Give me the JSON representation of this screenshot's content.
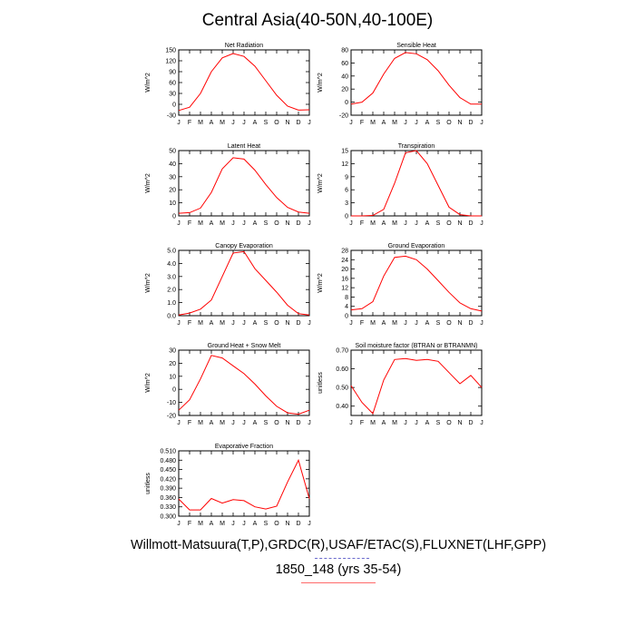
{
  "title": "Central Asia(40-50N,40-100E)",
  "caption_line1": "Willmott-Matsuura(T,P),GRDC(R),USAF/ETAC(S),FLUXNET(LHF,GPP)",
  "caption_line2": "1850_148 (yrs 35-54)",
  "line_color": "#ff0000",
  "chart_data": [
    {
      "type": "line",
      "title": "Net Radiation",
      "ylabel": "W/m^2",
      "categories": [
        "J",
        "F",
        "M",
        "A",
        "M",
        "J",
        "J",
        "A",
        "S",
        "O",
        "N",
        "D",
        "J"
      ],
      "yticks": [
        "150",
        "120",
        "90",
        "60",
        "30",
        "0",
        "-30"
      ],
      "ylim": [
        -30,
        150
      ],
      "values": [
        -17,
        -8,
        30,
        90,
        128,
        140,
        132,
        105,
        65,
        25,
        -5,
        -16,
        -15
      ]
    },
    {
      "type": "line",
      "title": "Sensible Heat",
      "ylabel": "W/m^2",
      "categories": [
        "J",
        "F",
        "M",
        "A",
        "M",
        "J",
        "J",
        "A",
        "S",
        "O",
        "N",
        "D",
        "J"
      ],
      "yticks": [
        "80",
        "60",
        "40",
        "20",
        "0",
        "-20"
      ],
      "ylim": [
        -20,
        80
      ],
      "values": [
        -3,
        0,
        14,
        43,
        67,
        76,
        74,
        65,
        48,
        26,
        7,
        -3,
        -3
      ]
    },
    {
      "type": "line",
      "title": "Latent Heat",
      "ylabel": "W/m^2",
      "categories": [
        "J",
        "F",
        "M",
        "A",
        "M",
        "J",
        "J",
        "A",
        "S",
        "O",
        "N",
        "D",
        "J"
      ],
      "yticks": [
        "50",
        "40",
        "30",
        "20",
        "10",
        "0"
      ],
      "ylim": [
        0,
        50
      ],
      "values": [
        2,
        2.5,
        6,
        18,
        36,
        44.5,
        43.5,
        35,
        24,
        14,
        6.5,
        3,
        2
      ]
    },
    {
      "type": "line",
      "title": "Transpiration",
      "ylabel": "W/m^2",
      "categories": [
        "J",
        "F",
        "M",
        "A",
        "M",
        "J",
        "J",
        "A",
        "S",
        "O",
        "N",
        "D",
        "J"
      ],
      "yticks": [
        "15",
        "12",
        "9",
        "6",
        "3",
        "0"
      ],
      "ylim": [
        0,
        15
      ],
      "values": [
        0,
        0,
        0.1,
        1.5,
        7.5,
        14.5,
        15,
        12,
        7,
        2,
        0.3,
        0,
        0
      ]
    },
    {
      "type": "line",
      "title": "Canopy Evaporation",
      "ylabel": "W/m^2",
      "categories": [
        "J",
        "F",
        "M",
        "A",
        "M",
        "J",
        "J",
        "A",
        "S",
        "O",
        "N",
        "D",
        "J"
      ],
      "yticks": [
        "5.0",
        "4.0",
        "3.0",
        "2.0",
        "1.0",
        "0.0"
      ],
      "ylim": [
        0,
        5
      ],
      "values": [
        0.05,
        0.2,
        0.5,
        1.2,
        3.0,
        4.8,
        4.9,
        3.6,
        2.7,
        1.8,
        0.8,
        0.15,
        0.05
      ]
    },
    {
      "type": "line",
      "title": "Ground Evaporation",
      "ylabel": "W/m^2",
      "categories": [
        "J",
        "F",
        "M",
        "A",
        "M",
        "J",
        "J",
        "A",
        "S",
        "O",
        "N",
        "D",
        "J"
      ],
      "yticks": [
        "28",
        "24",
        "20",
        "16",
        "12",
        "8",
        "4",
        "0"
      ],
      "ylim": [
        0,
        28
      ],
      "values": [
        2.5,
        3,
        6,
        17,
        25,
        25.5,
        24,
        20,
        15,
        10,
        5.5,
        3,
        2
      ]
    },
    {
      "type": "line",
      "title": "Ground Heat + Snow Melt",
      "ylabel": "W/m^2",
      "categories": [
        "J",
        "F",
        "M",
        "A",
        "M",
        "J",
        "J",
        "A",
        "S",
        "O",
        "N",
        "D",
        "J"
      ],
      "yticks": [
        "30",
        "20",
        "10",
        "0",
        "-10",
        "-20"
      ],
      "ylim": [
        -20,
        30
      ],
      "values": [
        -16,
        -8,
        8,
        26,
        24,
        18,
        12,
        4,
        -5,
        -13,
        -18,
        -19,
        -16
      ]
    },
    {
      "type": "line",
      "title": "Soil moisture factor (BTRAN or BTRANMN)",
      "ylabel": "unitless",
      "categories": [
        "J",
        "F",
        "M",
        "A",
        "M",
        "J",
        "J",
        "A",
        "S",
        "O",
        "N",
        "D",
        "J"
      ],
      "yticks": [
        "0.70",
        "0.60",
        "0.50",
        "0.40"
      ],
      "ylim": [
        0.35,
        0.7
      ],
      "values": [
        0.51,
        0.42,
        0.36,
        0.54,
        0.65,
        0.655,
        0.645,
        0.65,
        0.64,
        0.58,
        0.52,
        0.565,
        0.5
      ]
    },
    {
      "type": "line",
      "title": "Evaporative Fraction",
      "ylabel": "unitless",
      "categories": [
        "J",
        "F",
        "M",
        "A",
        "M",
        "J",
        "J",
        "A",
        "S",
        "O",
        "N",
        "D",
        "J"
      ],
      "yticks": [
        "0.510",
        "0.480",
        "0.450",
        "0.420",
        "0.390",
        "0.360",
        "0.330",
        "0.300"
      ],
      "ylim": [
        0.3,
        0.51
      ],
      "values": [
        0.355,
        0.32,
        0.32,
        0.357,
        0.342,
        0.353,
        0.35,
        0.33,
        0.323,
        0.332,
        0.41,
        0.48,
        0.356
      ]
    }
  ]
}
